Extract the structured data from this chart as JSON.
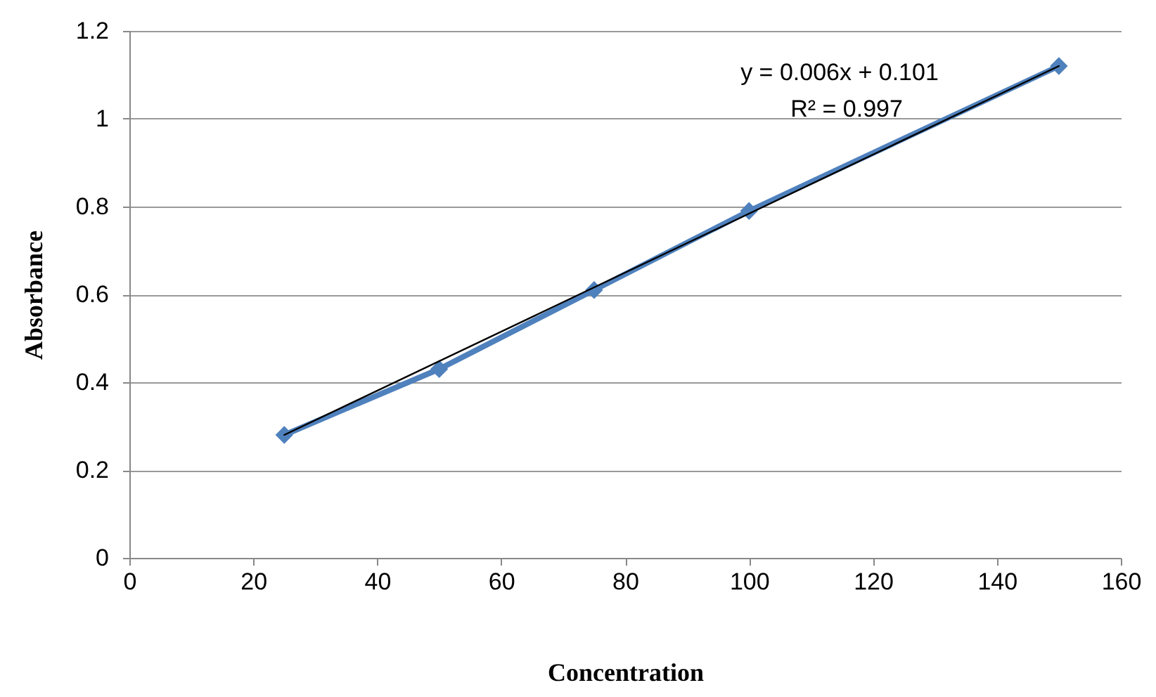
{
  "chart_data": {
    "type": "line",
    "xlabel": "Concentration",
    "ylabel": "Absorbance",
    "x": [
      25,
      50,
      75,
      100,
      150
    ],
    "series": [
      {
        "color": "#4f81bd",
        "values": [
          0.28,
          0.43,
          0.61,
          0.79,
          1.12
        ],
        "marker": "diamond"
      },
      {
        "color": "#000000",
        "x": [
          25,
          150
        ],
        "values": [
          0.28,
          1.12
        ],
        "marker": "none"
      }
    ],
    "xlim": [
      0,
      160
    ],
    "xticks": [
      0,
      20,
      40,
      60,
      80,
      100,
      120,
      140,
      160
    ],
    "ylim": [
      0,
      1.2
    ],
    "yticks": [
      0,
      0.2,
      0.4,
      0.6,
      0.8,
      1,
      1.2
    ],
    "grid": "y",
    "annotations": [
      "y = 0.006x + 0.101",
      "R² = 0.997"
    ]
  }
}
